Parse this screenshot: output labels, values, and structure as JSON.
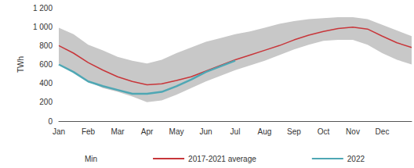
{
  "chart_data": {
    "type": "line",
    "y_label": "TWh",
    "categories": [
      "Jan",
      null,
      "Feb",
      null,
      "Mar",
      null,
      "Apr",
      null,
      "May",
      null,
      "Jun",
      null,
      "Jul",
      null,
      "Aug",
      null,
      "Sep",
      null,
      "Oct",
      null,
      "Nov",
      null,
      "Dec",
      null,
      null
    ],
    "series": [
      {
        "name": "Min",
        "type": "band",
        "color": "#c8c8c8",
        "values": [
          610,
          520,
          420,
          350,
          310,
          260,
          200,
          220,
          280,
          350,
          420,
          480,
          540,
          590,
          640,
          700,
          760,
          810,
          850,
          860,
          860,
          810,
          720,
          650,
          600
        ],
        "upper": [
          990,
          920,
          810,
          750,
          680,
          640,
          610,
          650,
          720,
          780,
          840,
          880,
          920,
          950,
          990,
          1030,
          1060,
          1080,
          1090,
          1100,
          1100,
          1080,
          1020,
          960,
          900
        ]
      },
      {
        "name": "2017-2021 average",
        "type": "line",
        "color": "#c8363a",
        "values": [
          800,
          720,
          620,
          540,
          470,
          420,
          385,
          395,
          430,
          470,
          530,
          590,
          650,
          700,
          750,
          800,
          860,
          910,
          950,
          980,
          995,
          975,
          900,
          830,
          780
        ]
      },
      {
        "name": "2022",
        "type": "line",
        "color": "#4fa7b4",
        "values": [
          600,
          520,
          420,
          370,
          330,
          290,
          290,
          310,
          370,
          440,
          520,
          580,
          640,
          null,
          null,
          null,
          null,
          null,
          null,
          null,
          null,
          null,
          null,
          null,
          null
        ]
      }
    ],
    "ylim": [
      0,
      1200
    ],
    "yticks": [
      0,
      200,
      400,
      600,
      800,
      {
        "value": 1000,
        "label": "1 000"
      },
      {
        "value": 1200,
        "label": "1 200"
      }
    ],
    "grid": false,
    "legend": "bottom"
  }
}
